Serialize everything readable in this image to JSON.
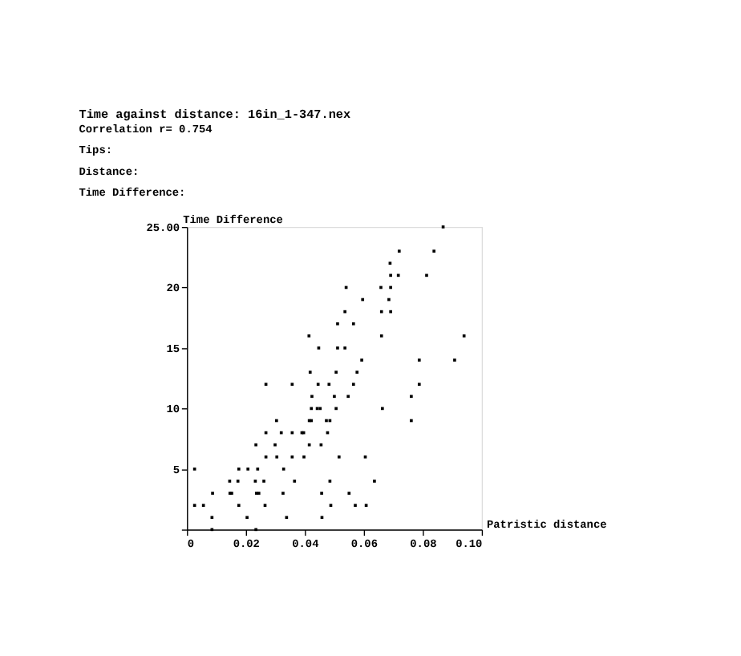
{
  "chart_data": {
    "type": "scatter",
    "title": "Time against distance: 16in_1-347.nex",
    "annotations": [
      "Correlation r= 0.754",
      "Tips:",
      "Distance:",
      "Time Difference:"
    ],
    "xlabel": "Patristic distance",
    "ylabel": "Time Difference",
    "xlim": [
      0,
      0.1
    ],
    "ylim": [
      0,
      25
    ],
    "xticks": [
      0,
      0.02,
      0.04,
      0.06,
      0.08,
      {
        "value": 0.1,
        "label": "0.10"
      }
    ],
    "yticks": [
      {
        "value": 0,
        "label": null
      },
      5,
      10,
      15,
      20,
      {
        "value": 25,
        "label": "25.00"
      }
    ],
    "grid": false,
    "marker": "square",
    "series": [
      {
        "color": "#000000",
        "x": [
          0.0085,
          0.0234,
          0.0085,
          0.0204,
          0.0338,
          0.0458,
          0.0026,
          0.0056,
          0.0176,
          0.0265,
          0.0488,
          0.0571,
          0.0608,
          0.0087,
          0.0146,
          0.0152,
          0.0236,
          0.0244,
          0.0326,
          0.0457,
          0.055,
          0.0145,
          0.0173,
          0.0232,
          0.0261,
          0.0365,
          0.0485,
          0.0636,
          0.0026,
          0.0176,
          0.0207,
          0.024,
          0.0328,
          0.0268,
          0.0305,
          0.0357,
          0.0397,
          0.0516,
          0.0605,
          0.0234,
          0.0299,
          0.0415,
          0.0455,
          0.0268,
          0.032,
          0.0357,
          0.039,
          0.0396,
          0.0477,
          0.0304,
          0.0415,
          0.0422,
          0.0473,
          0.0485,
          0.0761,
          0.0422,
          0.0442,
          0.0452,
          0.0506,
          0.0663,
          0.0424,
          0.05,
          0.0547,
          0.0761,
          0.0268,
          0.0357,
          0.0445,
          0.0482,
          0.0565,
          0.0788,
          0.0418,
          0.0506,
          0.0577,
          0.0593,
          0.0788,
          0.0908,
          0.0447,
          0.0511,
          0.0536,
          0.0414,
          0.066,
          0.094,
          0.0511,
          0.0565,
          0.0536,
          0.066,
          0.0691,
          0.0596,
          0.0685,
          0.054,
          0.0658,
          0.0691,
          0.0691,
          0.0717,
          0.0813,
          0.0689,
          0.072,
          0.0838,
          0.0869
        ],
        "values": [
          0,
          0,
          1,
          1,
          1,
          1,
          2,
          2,
          2,
          2,
          2,
          2,
          2,
          3,
          3,
          3,
          3,
          3,
          3,
          3,
          3,
          4,
          4,
          4,
          4,
          4,
          4,
          4,
          5,
          5,
          5,
          5,
          5,
          6,
          6,
          6,
          6,
          6,
          6,
          7,
          7,
          7,
          7,
          8,
          8,
          8,
          8,
          8,
          8,
          9,
          9,
          9,
          9,
          9,
          9,
          10,
          10,
          10,
          10,
          10,
          11,
          11,
          11,
          11,
          12,
          12,
          12,
          12,
          12,
          12,
          13,
          13,
          13,
          14,
          14,
          14,
          15,
          15,
          15,
          16,
          16,
          16,
          17,
          17,
          18,
          18,
          18,
          19,
          19,
          20,
          20,
          20,
          21,
          21,
          21,
          22,
          23,
          23,
          25
        ]
      }
    ]
  }
}
